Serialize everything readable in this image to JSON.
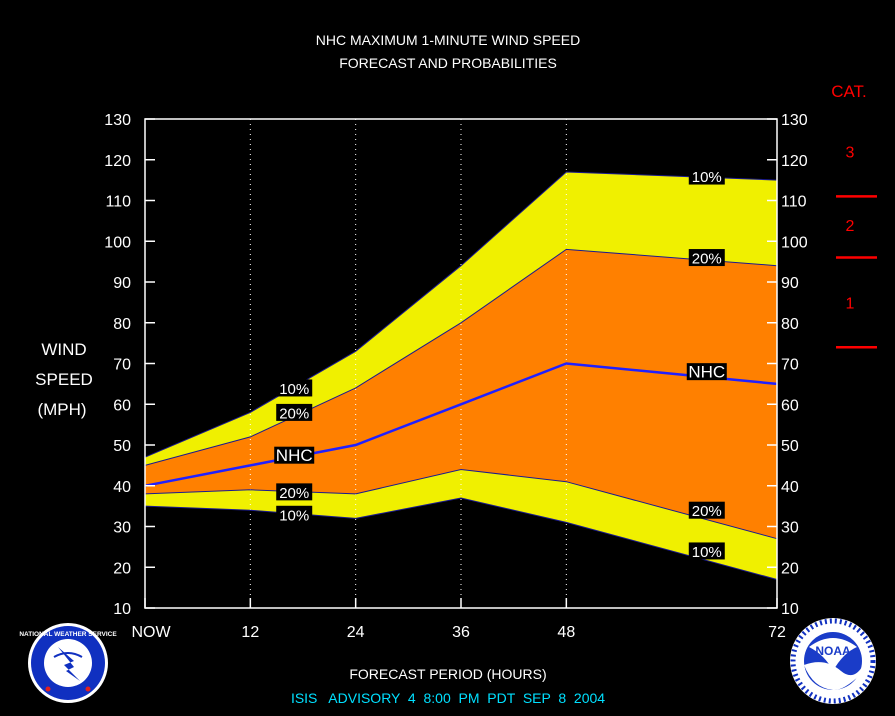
{
  "chart_data": {
    "type": "area",
    "title": "NHC MAXIMUM 1-MINUTE WIND SPEED",
    "subtitle": "FORECAST AND PROBABILITIES",
    "ylabel_lines": [
      "WIND",
      "SPEED",
      "(MPH)"
    ],
    "xlabel": "FORECAST PERIOD (HOURS)",
    "advisory": "ISIS   ADVISORY  4  8:00  PM  PDT  SEP  8  2004",
    "xlim": [
      0,
      72
    ],
    "ylim": [
      10,
      130
    ],
    "x_ticks": [
      {
        "x": 0,
        "label": "NOW"
      },
      {
        "x": 12,
        "label": "12"
      },
      {
        "x": 24,
        "label": "24"
      },
      {
        "x": 36,
        "label": "36"
      },
      {
        "x": 48,
        "label": "48"
      },
      {
        "x": 72,
        "label": "72"
      }
    ],
    "y_ticks": [
      10,
      20,
      30,
      40,
      50,
      60,
      70,
      80,
      90,
      100,
      110,
      120,
      130
    ],
    "vertical_grid_x": [
      12,
      24,
      36,
      48
    ],
    "x": [
      0,
      12,
      24,
      36,
      48,
      72
    ],
    "series": [
      {
        "name": "10%",
        "role": "upper",
        "values": [
          47,
          58,
          73,
          94,
          117,
          115
        ]
      },
      {
        "name": "20%",
        "role": "upper",
        "values": [
          45,
          52,
          64,
          80,
          98,
          94
        ]
      },
      {
        "name": "NHC",
        "role": "forecast",
        "values": [
          40,
          45,
          50,
          60,
          70,
          65
        ]
      },
      {
        "name": "20%",
        "role": "lower",
        "values": [
          38,
          39,
          38,
          44,
          41,
          27
        ]
      },
      {
        "name": "10%",
        "role": "lower",
        "values": [
          35,
          34,
          32,
          37,
          31,
          17
        ]
      }
    ],
    "band_colors": {
      "outer": "#f0f000",
      "inner": "#ff8000",
      "forecast_line": "#2020ff",
      "edge": "#1a1a90"
    },
    "inline_labels": [
      {
        "text": "10%",
        "x": 17,
        "y": 64
      },
      {
        "text": "20%",
        "x": 17,
        "y": 58
      },
      {
        "text": "NHC",
        "x": 17,
        "y": 47.5
      },
      {
        "text": "20%",
        "x": 17,
        "y": 38.5
      },
      {
        "text": "10%",
        "x": 17,
        "y": 33
      },
      {
        "text": "10%",
        "x": 64,
        "y": 116
      },
      {
        "text": "20%",
        "x": 64,
        "y": 96
      },
      {
        "text": "NHC",
        "x": 64,
        "y": 68
      },
      {
        "text": "20%",
        "x": 64,
        "y": 34
      },
      {
        "text": "10%",
        "x": 64,
        "y": 24
      }
    ],
    "category_scale": {
      "title": "CAT.",
      "color": "#ff0000",
      "boundaries_mph": [
        74,
        96,
        111
      ],
      "labels": [
        {
          "text": "1",
          "y": 85
        },
        {
          "text": "2",
          "y": 104
        },
        {
          "text": "3",
          "y": 122
        }
      ]
    }
  },
  "logos": {
    "nws": {
      "text": "NATIONAL WEATHER SERVICE"
    },
    "noaa": {
      "text": "NOAA"
    }
  }
}
